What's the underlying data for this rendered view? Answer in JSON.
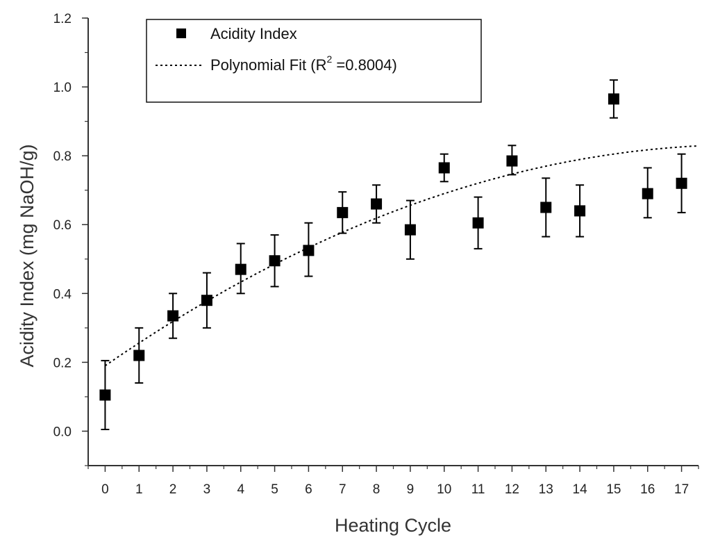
{
  "chart_data": {
    "type": "scatter",
    "title": "",
    "xlabel": "Heating Cycle",
    "ylabel": "Acidity Index (mg NaOH/g)",
    "xlim": [
      -0.5,
      17.5
    ],
    "ylim": [
      -0.1,
      1.2
    ],
    "xticks": [
      0,
      1,
      2,
      3,
      4,
      5,
      6,
      7,
      8,
      9,
      10,
      11,
      12,
      13,
      14,
      15,
      16,
      17
    ],
    "yticks": [
      0.0,
      0.2,
      0.4,
      0.6,
      0.8,
      1.0,
      1.2
    ],
    "xtick_labels": [
      "0",
      "1",
      "2",
      "3",
      "4",
      "5",
      "6",
      "7",
      "8",
      "9",
      "10",
      "11",
      "12",
      "13",
      "14",
      "15",
      "16",
      "17"
    ],
    "ytick_labels": [
      "0.0",
      "0.2",
      "0.4",
      "0.6",
      "0.8",
      "1.0",
      "1.2"
    ],
    "series": [
      {
        "name": "Acidity Index",
        "marker": "square",
        "x": [
          0,
          1,
          2,
          3,
          4,
          5,
          6,
          7,
          8,
          9,
          10,
          11,
          12,
          13,
          14,
          15,
          16,
          17
        ],
        "y": [
          0.105,
          0.22,
          0.335,
          0.38,
          0.47,
          0.495,
          0.525,
          0.635,
          0.66,
          0.585,
          0.765,
          0.605,
          0.785,
          0.65,
          0.64,
          0.965,
          0.69,
          0.72
        ],
        "err_upper": [
          0.205,
          0.3,
          0.4,
          0.46,
          0.545,
          0.57,
          0.605,
          0.695,
          0.715,
          0.67,
          0.805,
          0.68,
          0.83,
          0.735,
          0.715,
          1.02,
          0.765,
          0.805
        ],
        "err_lower": [
          0.005,
          0.14,
          0.27,
          0.3,
          0.4,
          0.42,
          0.45,
          0.575,
          0.605,
          0.5,
          0.725,
          0.53,
          0.745,
          0.565,
          0.565,
          0.91,
          0.62,
          0.635
        ]
      }
    ],
    "fit": {
      "name": "Polynomial Fit",
      "r2": "0.8004",
      "style": "dotted",
      "coeffs": [
        0.19,
        0.068,
        -0.0018
      ]
    },
    "legend": {
      "position": "top-left",
      "entries": [
        {
          "label": "Acidity Index"
        },
        {
          "label_prefix": "Polynomial Fit (R",
          "label_sup": "2",
          "label_suffix": " =0.8004)"
        }
      ]
    },
    "colors": {
      "marker": "#000000",
      "axis": "#333333",
      "fit": "#000000"
    }
  }
}
